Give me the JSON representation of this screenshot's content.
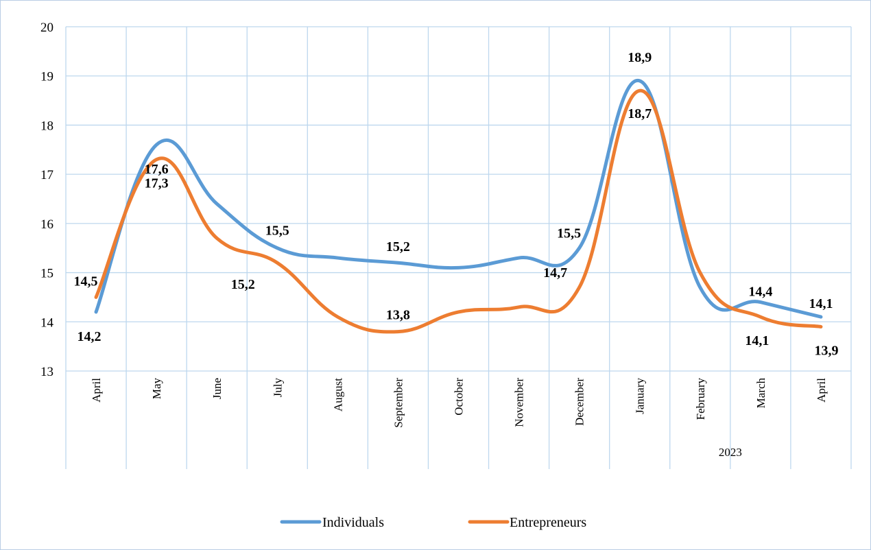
{
  "chart_data": {
    "type": "line",
    "categories": [
      "April",
      "May",
      "June",
      "July",
      "August",
      "September",
      "October",
      "November",
      "December",
      "January",
      "February",
      "March",
      "April"
    ],
    "year_group": {
      "label": "2023",
      "from_category": 9,
      "to_category": 12
    },
    "ylim": [
      13,
      20
    ],
    "yticks": [
      13,
      14,
      15,
      16,
      17,
      18,
      19,
      20
    ],
    "grid": true,
    "legend_position": "bottom",
    "series": [
      {
        "name": "Individuals",
        "color": "#5b9bd5",
        "values": [
          14.2,
          17.6,
          16.4,
          15.5,
          15.3,
          15.2,
          15.1,
          15.3,
          15.5,
          18.9,
          14.7,
          14.4,
          14.1
        ],
        "labels": {
          "0": "14,2",
          "1": "17,6",
          "3": "15,5",
          "5": "15,2",
          "8": "15,5",
          "9": "18,9",
          "11": "14,4",
          "12": "14,1"
        }
      },
      {
        "name": "Entrepreneurs",
        "color": "#ed7d31",
        "values": [
          14.5,
          17.3,
          15.7,
          15.2,
          14.1,
          13.8,
          14.2,
          14.3,
          14.7,
          18.7,
          15.0,
          14.1,
          13.9
        ],
        "labels": {
          "0": "14,5",
          "1": "17,3",
          "3": "15,2",
          "5": "13,8",
          "8": "14,7",
          "9": "18,7",
          "11": "14,1",
          "12": "13,9"
        }
      }
    ]
  }
}
